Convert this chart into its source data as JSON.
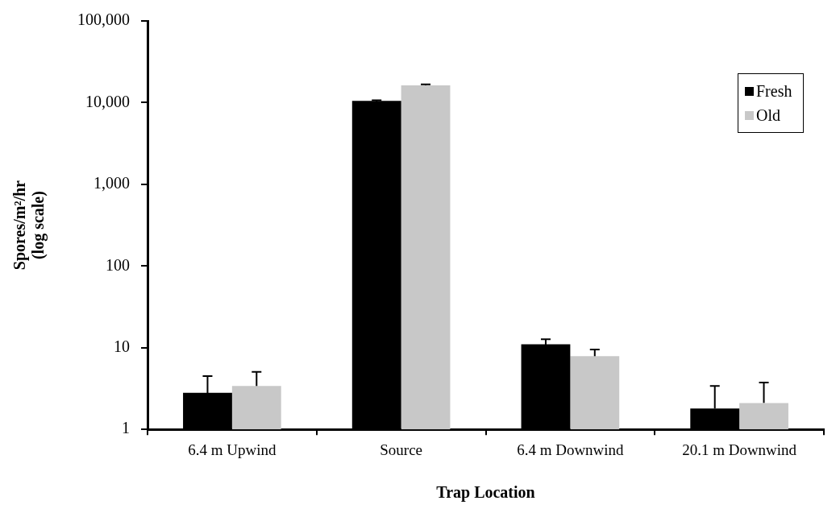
{
  "chart_data": {
    "type": "bar",
    "xlabel": "Trap Location",
    "ylabel": "Spores/m²/hr\n(log scale)",
    "categories": [
      "6.4 m Upwind",
      "Source",
      "6.4 m Downwind",
      "20.1 m Downwind"
    ],
    "series": [
      {
        "name": "Fresh",
        "color": "#000000",
        "values": [
          2.8,
          10500,
          11,
          1.8
        ],
        "errors": [
          1.7,
          200,
          1.7,
          1.6
        ]
      },
      {
        "name": "Old",
        "color": "#c8c8c8",
        "values": [
          3.4,
          16300,
          7.9,
          2.1
        ],
        "errors": [
          1.65,
          400,
          1.6,
          1.65
        ]
      }
    ],
    "log": true,
    "ylim": [
      1,
      100000
    ],
    "yticks": [
      1,
      10,
      {
        "value": 100,
        "label": "100"
      },
      {
        "value": 1000,
        "label": "1,000"
      },
      {
        "value": 10000,
        "label": "10,000"
      },
      {
        "value": 100000,
        "label": "100,000"
      }
    ],
    "grid": false,
    "legend": "top right"
  }
}
